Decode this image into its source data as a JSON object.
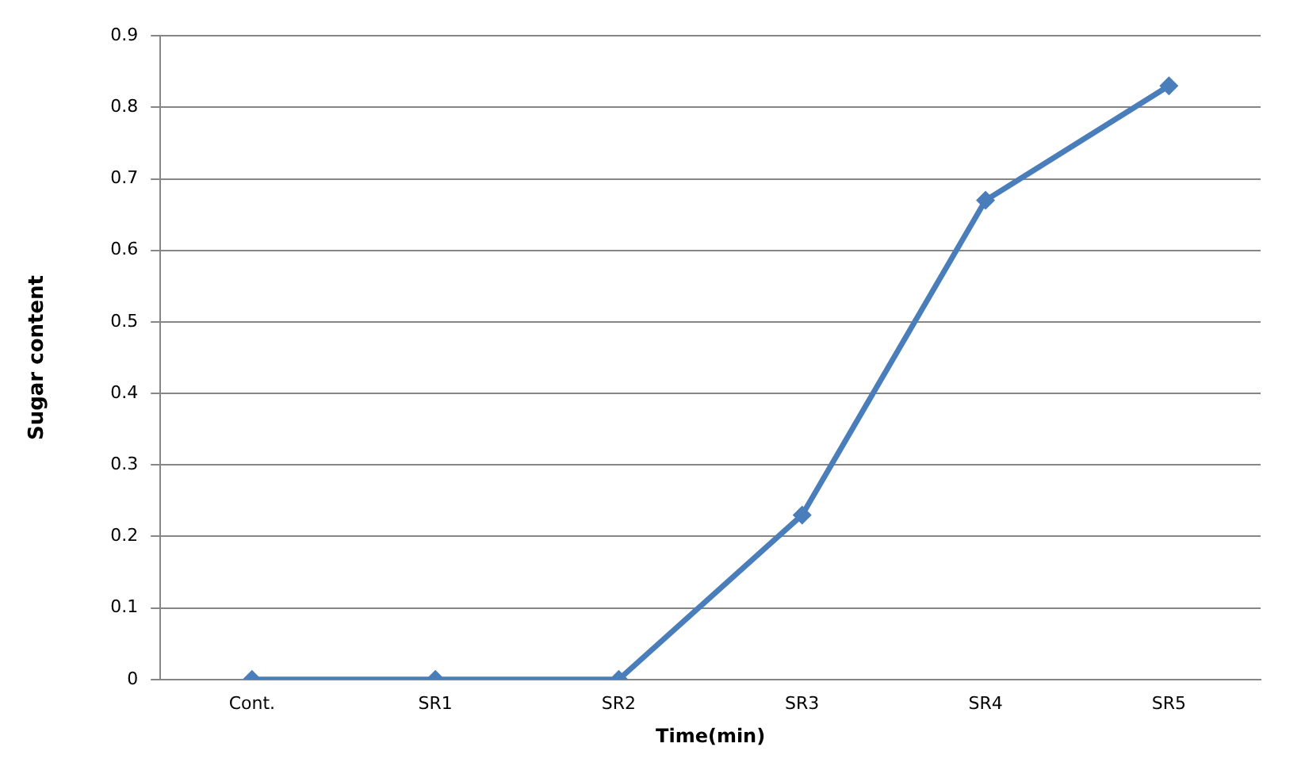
{
  "chart_data": {
    "type": "line",
    "xlabel": "Time(min)",
    "ylabel": "Sugar content",
    "categories": [
      "Cont.",
      "SR1",
      "SR2",
      "SR3",
      "SR4",
      "SR5"
    ],
    "series": [
      {
        "color": "#4a7ebb",
        "values": [
          0,
          0,
          0,
          0.23,
          0.67,
          0.83
        ]
      }
    ],
    "ylim": [
      0,
      0.9
    ],
    "yticks": [
      0,
      0.1,
      0.2,
      0.3,
      0.4,
      0.5,
      0.6,
      0.7,
      0.8,
      0.9
    ],
    "grid": "y",
    "legend": false,
    "marker": "diamond",
    "line_style": "solid"
  }
}
